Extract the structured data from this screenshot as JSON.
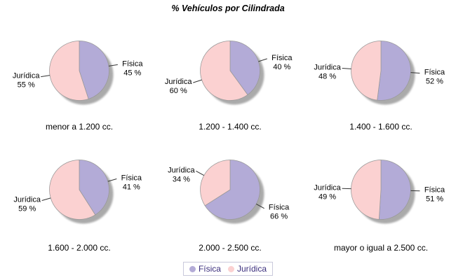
{
  "title": "% Vehículos por Cilindrada",
  "legend": {
    "items": [
      {
        "label": "Física",
        "color": "#b3abd7"
      },
      {
        "label": "Jurídica",
        "color": "#fbd1d1"
      }
    ]
  },
  "chart_data": {
    "type": "pie",
    "title": "% Vehículos por Cilindrada",
    "series_labels": [
      "Física",
      "Jurídica"
    ],
    "colors": {
      "Física": "#b3abd7",
      "Jurídica": "#fbd1d1"
    },
    "label_format": "{value} %",
    "start_angle_deg": 0,
    "direction": "clockwise",
    "layout": {
      "rows": 2,
      "cols": 3
    },
    "shadow": true,
    "pies": [
      {
        "category": "menor a 1.200 cc.",
        "values": {
          "Física": 45,
          "Jurídica": 55
        }
      },
      {
        "category": "1.200 - 1.400 cc.",
        "values": {
          "Física": 40,
          "Jurídica": 60
        }
      },
      {
        "category": "1.400 - 1.600 cc.",
        "values": {
          "Física": 52,
          "Jurídica": 48
        }
      },
      {
        "category": "1.600 - 2.000 cc.",
        "values": {
          "Física": 41,
          "Jurídica": 59
        }
      },
      {
        "category": "2.000 - 2.500 cc.",
        "values": {
          "Física": 66,
          "Jurídica": 34
        }
      },
      {
        "category": "mayor o igual a 2.500 cc.",
        "values": {
          "Física": 51,
          "Jurídica": 49
        }
      }
    ],
    "style": {
      "slice_outline_color": "#989898",
      "connector_color": "#333333",
      "shadow_color": "#9c9c9c"
    }
  }
}
